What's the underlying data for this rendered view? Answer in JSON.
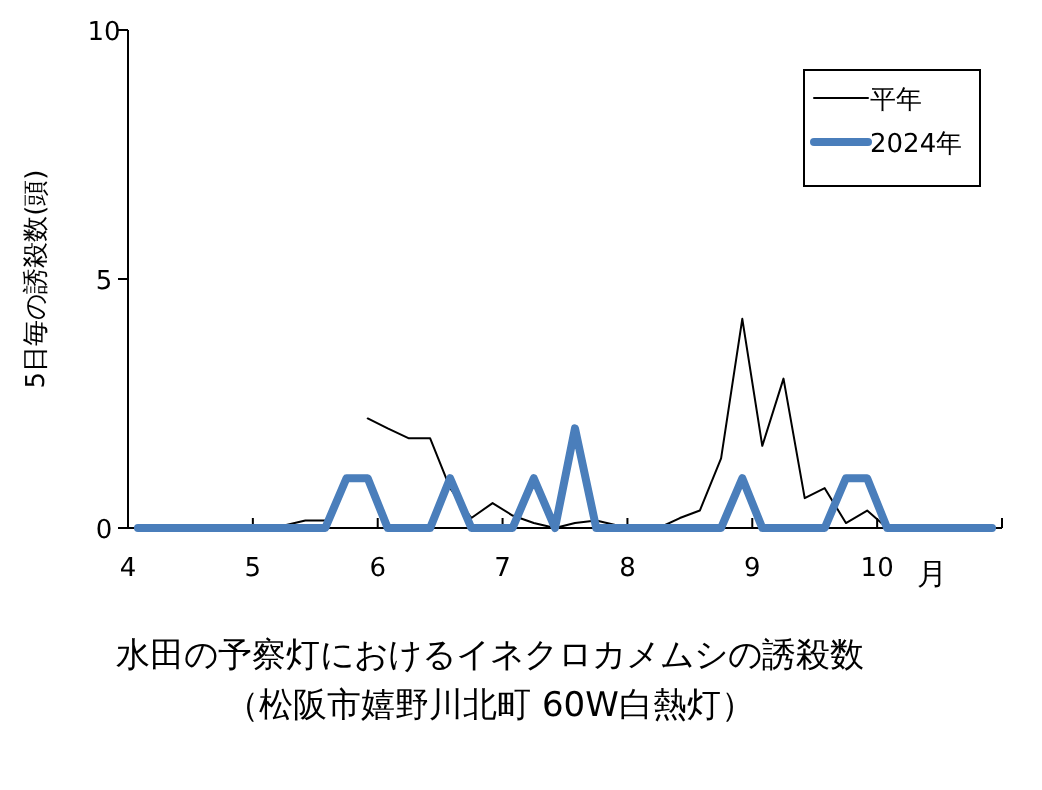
{
  "chart_data": {
    "type": "line",
    "title": "水田の予察灯におけるイネクロカメムシの誘殺数",
    "subtitle": "（松阪市嬉野川北町 60W白熱灯）",
    "xlabel": "月",
    "ylabel": "5日毎の誘殺数(頭)",
    "x": [
      4.08,
      4.25,
      4.42,
      4.58,
      4.75,
      4.92,
      5.08,
      5.25,
      5.42,
      5.58,
      5.75,
      5.92,
      6.08,
      6.25,
      6.42,
      6.58,
      6.75,
      6.92,
      7.08,
      7.25,
      7.42,
      7.58,
      7.75,
      7.92,
      8.08,
      8.25,
      8.42,
      8.58,
      8.75,
      8.92,
      9.08,
      9.25,
      9.42,
      9.58,
      9.75,
      9.92,
      10.08,
      10.25,
      10.42,
      10.58,
      10.75,
      10.92
    ],
    "series": [
      {
        "name": "平年",
        "color": "#000000",
        "values": [
          0,
          0,
          0,
          0,
          0,
          null,
          0,
          0.05,
          0.15,
          0.15,
          null,
          2.2,
          2.0,
          1.8,
          1.8,
          0.8,
          0.2,
          0.5,
          0.25,
          0.1,
          0,
          0.1,
          0.15,
          0.05,
          0,
          0,
          0.2,
          0.35,
          1.4,
          4.2,
          1.65,
          3.0,
          0.6,
          0.8,
          0.1,
          0.35,
          0,
          0,
          0,
          0,
          0,
          0
        ]
      },
      {
        "name": "2024年",
        "color": "#4a7ebb",
        "values": [
          0,
          0,
          0,
          0,
          0,
          0,
          0,
          0,
          0,
          0,
          1,
          1,
          0,
          0,
          0,
          1,
          0,
          0,
          0,
          1,
          0,
          2,
          0,
          0,
          0,
          0,
          0,
          0,
          0,
          1,
          0,
          0,
          0,
          0,
          1,
          1,
          0,
          0,
          0,
          0,
          0,
          0
        ]
      }
    ],
    "xlim": [
      4,
      11
    ],
    "xticks": [
      4,
      5,
      6,
      7,
      8,
      9,
      10
    ],
    "ylim": [
      0,
      10
    ],
    "yticks": [
      0,
      5,
      10
    ],
    "grid": false,
    "legend": "top right",
    "marker": "none",
    "line_style": "solid"
  }
}
